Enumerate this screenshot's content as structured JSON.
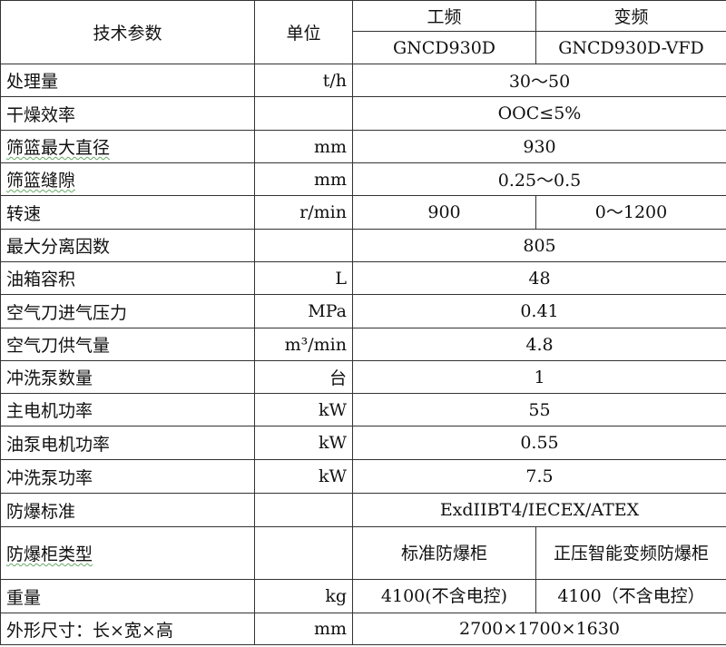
{
  "header": {
    "param": "技术参数",
    "unit": "单位",
    "fixed": "工频",
    "variable": "变频",
    "fixed_model": "GNCD930D",
    "variable_model": "GNCD930D-VFD"
  },
  "rows": [
    {
      "param": "处理量",
      "unit": "t/h",
      "value": "30～50"
    },
    {
      "param": "干燥效率",
      "unit": "",
      "value": "OOC≤5%"
    },
    {
      "param": "筛篮最大直径",
      "unit": "mm",
      "value": "930"
    },
    {
      "param": "筛篮缝隙",
      "unit": "mm",
      "value": "0.25～0.5"
    },
    {
      "param": "转速",
      "unit": "r/min",
      "fixed": "900",
      "variable": "0～1200"
    },
    {
      "param": "最大分离因数",
      "unit": "",
      "value": "805"
    },
    {
      "param": "油箱容积",
      "unit": "L",
      "value": "48"
    },
    {
      "param": "空气刀进气压力",
      "unit": "MPa",
      "value": "0.41"
    },
    {
      "param": "空气刀供气量",
      "unit": "m³/min",
      "value": "4.8"
    },
    {
      "param": "冲洗泵数量",
      "unit": "台",
      "value": "1"
    },
    {
      "param": "主电机功率",
      "unit": "kW",
      "value": "55"
    },
    {
      "param": "油泵电机功率",
      "unit": "kW",
      "value": "0.55"
    },
    {
      "param": "冲洗泵功率",
      "unit": "kW",
      "value": "7.5"
    },
    {
      "param": "防爆标准",
      "unit": "",
      "value": "ExdIIBT4/IECEX/ATEX"
    },
    {
      "param": "防爆柜类型",
      "unit": "",
      "fixed": "标准防爆柜",
      "variable": "正压智能变频防爆柜"
    },
    {
      "param": "重量",
      "unit": "kg",
      "fixed": "4100(不含电控)",
      "variable": "4100（不含电控）"
    },
    {
      "param": "外形尺寸：长×宽×高",
      "unit": "mm",
      "value": "2700×1700×1630"
    }
  ]
}
